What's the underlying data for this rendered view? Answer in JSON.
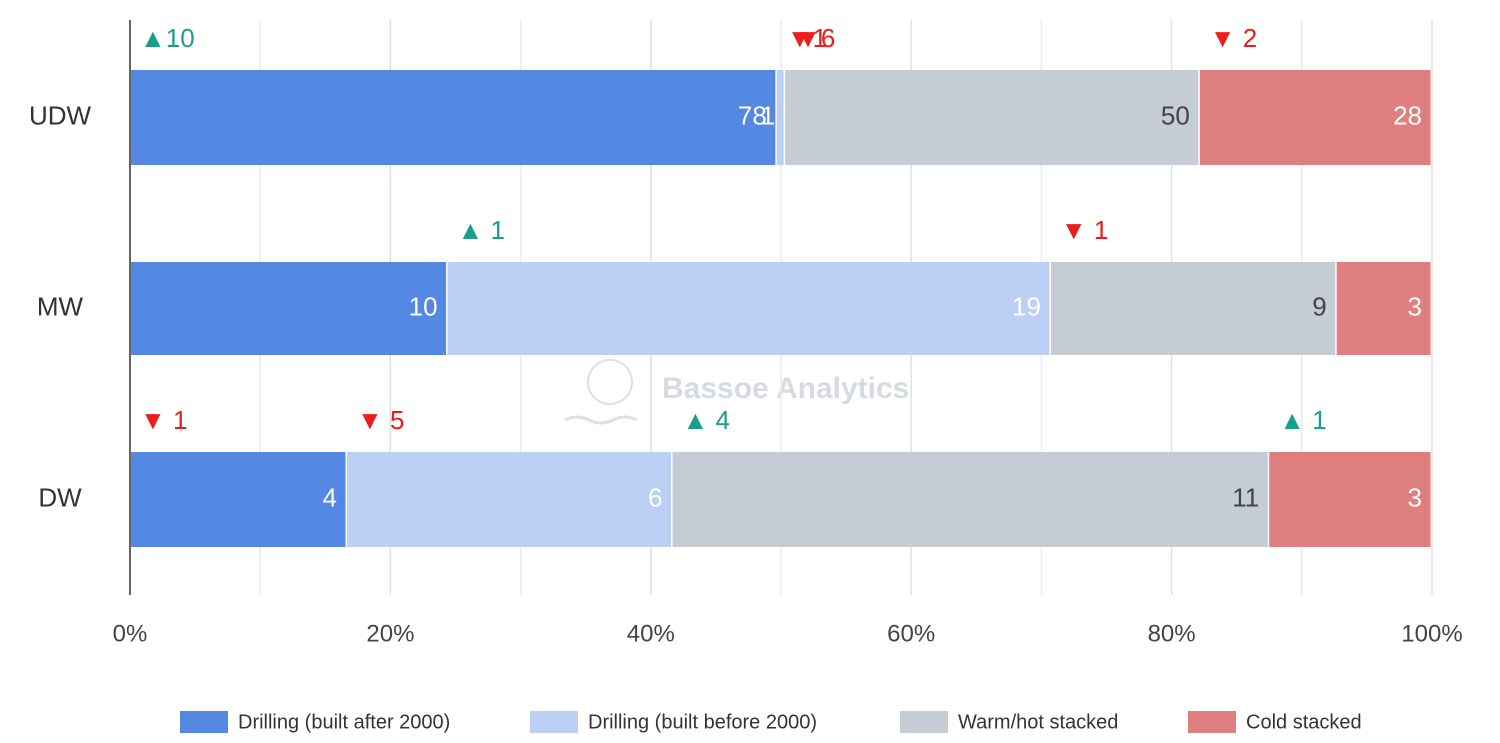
{
  "chart_data": {
    "type": "bar",
    "orientation": "horizontal",
    "stacking": "percent",
    "watermark": "Bassoe Analytics",
    "categories": [
      "UDW",
      "MW",
      "DW"
    ],
    "series": [
      {
        "name": "Drilling (built after 2000)",
        "color": "#5588e3",
        "label_color": "#ffffff",
        "values": [
          78,
          10,
          4
        ],
        "change_labels": [
          "▲10",
          null,
          "▼ 1"
        ]
      },
      {
        "name": "Drilling (built before 2000)",
        "color": "#bccff5",
        "label_color": "#ffffff",
        "values": [
          1,
          19,
          6
        ],
        "change_labels": [
          "▼1",
          "▲ 1",
          "▼ 5"
        ]
      },
      {
        "name": "Warm/hot stacked",
        "color": "#c5ccd6",
        "label_color": "#444444",
        "values": [
          50,
          9,
          11
        ],
        "change_labels": [
          "▼6",
          "▼ 1",
          "▲ 4"
        ]
      },
      {
        "name": "Cold stacked",
        "color": "#df7f7f",
        "label_color": "#ffffff",
        "values": [
          28,
          3,
          3
        ],
        "change_labels": [
          "▼ 2",
          null,
          "▲ 1"
        ]
      }
    ],
    "up_color": "#1a9e8c",
    "down_color": "#ee1c1c",
    "xlim": [
      0,
      100
    ],
    "xticks": [
      {
        "value": 0,
        "label": "0%"
      },
      {
        "value": 20,
        "label": "20%"
      },
      {
        "value": 40,
        "label": "40%"
      },
      {
        "value": 60,
        "label": "60%"
      },
      {
        "value": 80,
        "label": "80%"
      },
      {
        "value": 100,
        "label": "100%"
      }
    ],
    "minor_xticks": [
      10,
      30,
      50,
      70,
      90
    ],
    "grid": true,
    "legend": "bottom"
  }
}
